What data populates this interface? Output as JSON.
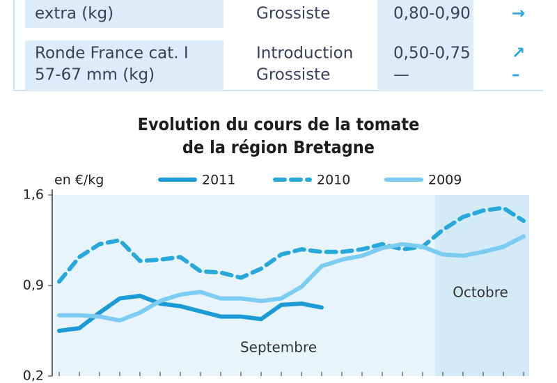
{
  "table": {
    "rows": [
      [
        [
          "extra (kg)"
        ],
        [
          "Grossiste"
        ],
        [
          "0,80-0,90"
        ],
        [
          "→"
        ]
      ],
      [
        [
          "Ronde France cat. I",
          "57-67 mm (kg)"
        ],
        [
          "Introduction",
          "Grossiste"
        ],
        [
          "0,50-0,75",
          "—"
        ],
        [
          "↗",
          "–"
        ]
      ]
    ]
  },
  "chart_data": {
    "type": "line",
    "title": [
      "Evolution du cours de la tomate",
      "de la région Bretagne"
    ],
    "ylabel": "en €/kg",
    "annotations": [
      "Septembre",
      "Octobre"
    ],
    "categories": [
      null,
      null,
      null,
      null,
      null,
      null,
      null,
      null,
      null,
      null,
      null,
      null,
      null,
      null,
      null,
      null,
      null,
      null,
      null,
      null,
      null,
      null,
      null,
      null
    ],
    "ylim": [
      0.2,
      1.6
    ],
    "yticks": [
      {
        "value": 0.2,
        "label": "0,2"
      },
      {
        "value": 0.9,
        "label": "0,9"
      },
      {
        "value": 1.6,
        "label": "1,6"
      }
    ],
    "series": [
      {
        "name": "2011",
        "color": "#1a9ad6",
        "dashed": false,
        "values": [
          0.55,
          0.57,
          0.69,
          0.8,
          0.82,
          0.76,
          0.74,
          0.7,
          0.66,
          0.66,
          0.64,
          0.75,
          0.76,
          0.73,
          null,
          null,
          null,
          null,
          null,
          null,
          null,
          null,
          null,
          null
        ]
      },
      {
        "name": "2010",
        "color": "#27a8db",
        "dashed": true,
        "values": [
          0.93,
          1.12,
          1.22,
          1.25,
          1.09,
          1.1,
          1.12,
          1.01,
          1.0,
          0.96,
          1.03,
          1.14,
          1.18,
          1.16,
          1.16,
          1.18,
          1.22,
          1.18,
          1.2,
          1.33,
          1.43,
          1.48,
          1.5,
          1.4
        ]
      },
      {
        "name": "2009",
        "color": "#7ccbf0",
        "dashed": false,
        "values": [
          0.67,
          0.67,
          0.66,
          0.63,
          0.69,
          0.78,
          0.83,
          0.85,
          0.8,
          0.8,
          0.78,
          0.8,
          0.89,
          1.05,
          1.1,
          1.13,
          1.19,
          1.22,
          1.2,
          1.14,
          1.13,
          1.16,
          1.2,
          1.28
        ]
      }
    ]
  }
}
